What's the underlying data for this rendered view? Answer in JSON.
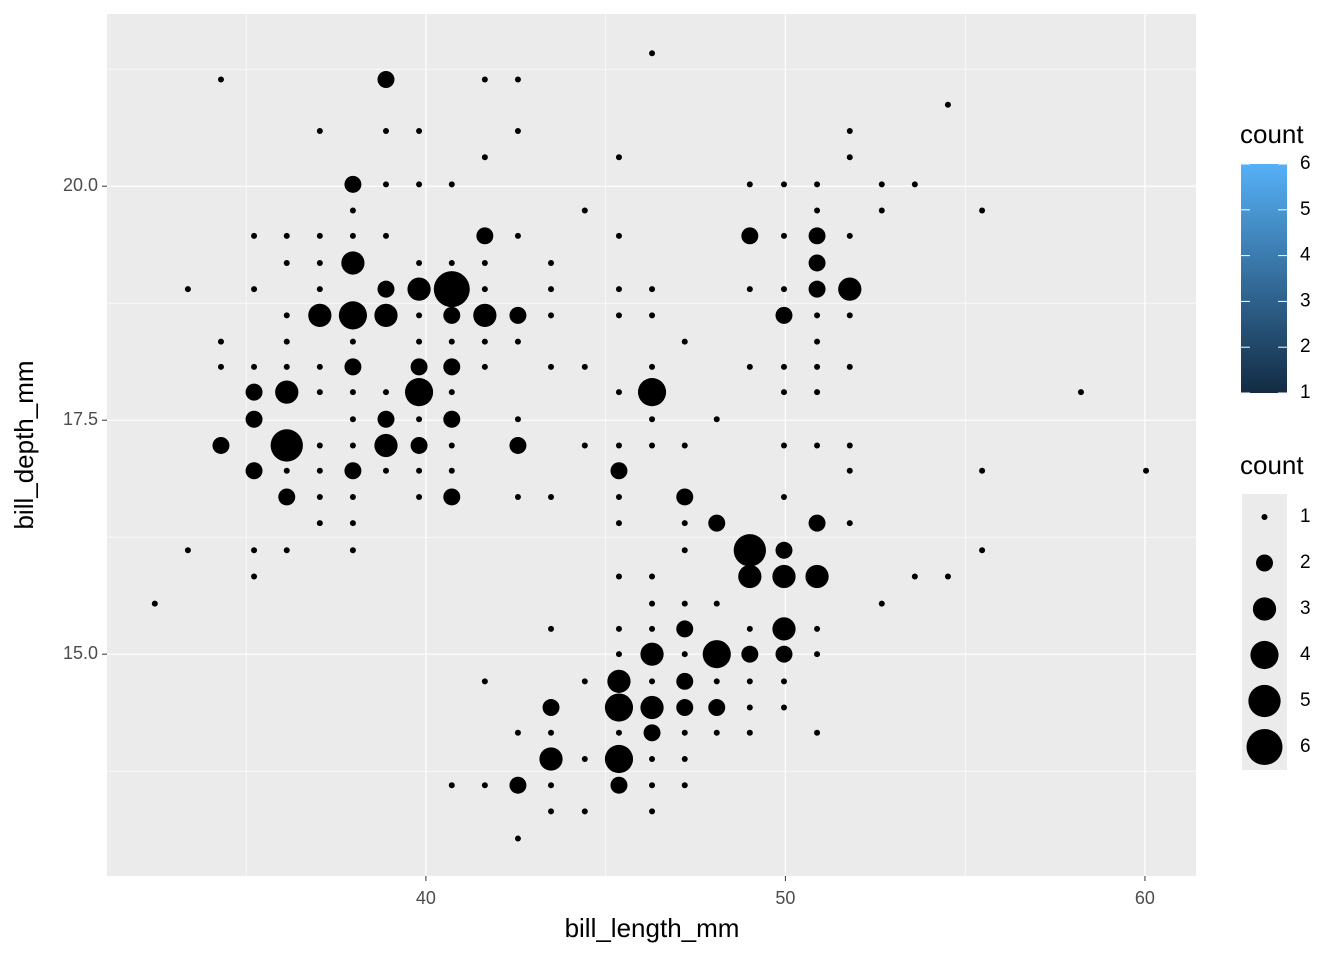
{
  "chart_data": {
    "type": "scatter",
    "xlabel": "bill_length_mm",
    "ylabel": "bill_depth_mm",
    "xlim": [
      31.13,
      61.42
    ],
    "ylim": [
      12.63,
      21.84
    ],
    "xticks": [
      40,
      50,
      60
    ],
    "yticks": [
      {
        "value": 15,
        "label": "15.0"
      },
      {
        "value": 17.5,
        "label": "17.5"
      },
      {
        "value": 20,
        "label": "20.0"
      }
    ],
    "x_minor_ticks": [
      35,
      45,
      55
    ],
    "y_minor_ticks": [
      13.75,
      16.25,
      18.75,
      21.25
    ],
    "grid": true,
    "point_color": "#000000",
    "x": [
      46.29,
      34.3,
      38.89,
      41.64,
      42.56,
      54.52,
      37.05,
      38.89,
      39.81,
      42.56,
      51.79,
      41.64,
      45.37,
      51.79,
      37.97,
      38.89,
      39.81,
      40.72,
      49.01,
      49.96,
      50.88,
      52.68,
      53.6,
      37.97,
      44.42,
      50.88,
      52.68,
      55.47,
      35.22,
      36.13,
      37.05,
      37.97,
      38.89,
      41.64,
      42.56,
      45.37,
      49.01,
      49.96,
      50.88,
      51.79,
      36.13,
      37.05,
      37.97,
      39.81,
      40.72,
      41.64,
      43.48,
      50.88,
      33.38,
      35.22,
      37.05,
      38.89,
      39.81,
      40.72,
      41.64,
      43.48,
      45.37,
      46.29,
      49.01,
      49.96,
      50.88,
      51.79,
      36.13,
      37.05,
      37.97,
      38.89,
      39.81,
      40.72,
      41.64,
      42.56,
      43.48,
      45.37,
      46.29,
      49.96,
      50.88,
      51.79,
      34.3,
      36.13,
      37.97,
      39.81,
      40.72,
      41.64,
      42.56,
      47.2,
      50.88,
      34.3,
      35.22,
      36.13,
      37.05,
      37.97,
      39.81,
      40.72,
      41.64,
      43.48,
      44.42,
      46.29,
      49.01,
      49.96,
      50.88,
      51.79,
      35.22,
      36.13,
      37.05,
      37.97,
      38.89,
      39.81,
      40.72,
      45.37,
      46.29,
      49.96,
      50.88,
      58.22,
      35.22,
      37.97,
      38.89,
      39.81,
      40.72,
      42.56,
      46.29,
      48.09,
      34.3,
      36.13,
      37.05,
      37.97,
      38.89,
      39.81,
      40.72,
      42.56,
      44.42,
      45.37,
      46.29,
      47.2,
      49.96,
      50.88,
      51.79,
      35.22,
      36.13,
      37.05,
      37.97,
      38.89,
      39.81,
      40.72,
      45.37,
      51.79,
      55.47,
      60.03,
      36.13,
      37.05,
      37.97,
      39.81,
      40.72,
      42.56,
      43.48,
      45.37,
      47.2,
      49.96,
      37.05,
      37.97,
      45.37,
      47.2,
      48.09,
      50.88,
      51.79,
      33.38,
      35.22,
      36.13,
      37.97,
      47.2,
      49.01,
      49.96,
      55.47,
      35.22,
      45.37,
      46.29,
      49.01,
      49.96,
      50.88,
      53.6,
      54.52,
      32.46,
      46.29,
      47.2,
      48.09,
      52.68,
      43.48,
      45.37,
      46.29,
      47.2,
      49.01,
      49.96,
      50.88,
      45.37,
      46.29,
      47.2,
      48.09,
      49.01,
      49.96,
      50.88,
      41.64,
      44.42,
      45.37,
      46.29,
      47.2,
      48.09,
      49.01,
      49.96,
      43.48,
      45.37,
      46.29,
      47.2,
      48.09,
      49.01,
      49.96,
      42.56,
      43.48,
      45.37,
      46.29,
      47.2,
      48.09,
      49.01,
      50.88,
      43.48,
      44.42,
      45.37,
      46.29,
      47.2,
      40.72,
      41.64,
      42.56,
      43.48,
      45.37,
      46.29,
      47.2,
      43.48,
      44.42,
      46.29,
      42.56
    ],
    "y": [
      21.42,
      21.14,
      21.14,
      21.14,
      21.14,
      20.87,
      20.59,
      20.59,
      20.59,
      20.59,
      20.59,
      20.31,
      20.31,
      20.31,
      20.02,
      20.02,
      20.02,
      20.02,
      20.02,
      20.02,
      20.02,
      20.02,
      20.02,
      19.74,
      19.74,
      19.74,
      19.74,
      19.74,
      19.47,
      19.47,
      19.47,
      19.47,
      19.47,
      19.47,
      19.47,
      19.47,
      19.47,
      19.47,
      19.47,
      19.47,
      19.18,
      19.18,
      19.18,
      19.18,
      19.18,
      19.18,
      19.18,
      19.18,
      18.9,
      18.9,
      18.9,
      18.9,
      18.9,
      18.9,
      18.9,
      18.9,
      18.9,
      18.9,
      18.9,
      18.9,
      18.9,
      18.9,
      18.62,
      18.62,
      18.62,
      18.62,
      18.62,
      18.62,
      18.62,
      18.62,
      18.62,
      18.62,
      18.62,
      18.62,
      18.62,
      18.62,
      18.34,
      18.34,
      18.34,
      18.34,
      18.34,
      18.34,
      18.34,
      18.34,
      18.34,
      18.07,
      18.07,
      18.07,
      18.07,
      18.07,
      18.07,
      18.07,
      18.07,
      18.07,
      18.07,
      18.07,
      18.07,
      18.07,
      18.07,
      18.07,
      17.8,
      17.8,
      17.8,
      17.8,
      17.8,
      17.8,
      17.8,
      17.8,
      17.8,
      17.8,
      17.8,
      17.8,
      17.51,
      17.51,
      17.51,
      17.51,
      17.51,
      17.51,
      17.51,
      17.51,
      17.23,
      17.23,
      17.23,
      17.23,
      17.23,
      17.23,
      17.23,
      17.23,
      17.23,
      17.23,
      17.23,
      17.23,
      17.23,
      17.23,
      17.23,
      16.96,
      16.96,
      16.96,
      16.96,
      16.96,
      16.96,
      16.96,
      16.96,
      16.96,
      16.96,
      16.96,
      16.68,
      16.68,
      16.68,
      16.68,
      16.68,
      16.68,
      16.68,
      16.68,
      16.68,
      16.68,
      16.4,
      16.4,
      16.4,
      16.4,
      16.4,
      16.4,
      16.4,
      16.11,
      16.11,
      16.11,
      16.11,
      16.11,
      16.11,
      16.11,
      16.11,
      15.83,
      15.83,
      15.83,
      15.83,
      15.83,
      15.83,
      15.83,
      15.83,
      15.54,
      15.54,
      15.54,
      15.54,
      15.54,
      15.27,
      15.27,
      15.27,
      15.27,
      15.27,
      15.27,
      15.27,
      15.0,
      15.0,
      15.0,
      15.0,
      15.0,
      15.0,
      15.0,
      14.71,
      14.71,
      14.71,
      14.71,
      14.71,
      14.71,
      14.71,
      14.71,
      14.43,
      14.43,
      14.43,
      14.43,
      14.43,
      14.43,
      14.43,
      14.16,
      14.16,
      14.16,
      14.16,
      14.16,
      14.16,
      14.16,
      14.16,
      13.88,
      13.88,
      13.88,
      13.88,
      13.88,
      13.6,
      13.6,
      13.6,
      13.6,
      13.6,
      13.6,
      13.6,
      13.32,
      13.32,
      13.32,
      13.03
    ],
    "size": [
      1,
      1,
      2,
      1,
      1,
      1,
      1,
      1,
      1,
      1,
      1,
      1,
      1,
      1,
      2,
      1,
      1,
      1,
      1,
      1,
      1,
      1,
      1,
      1,
      1,
      1,
      1,
      1,
      1,
      1,
      1,
      1,
      1,
      2,
      1,
      1,
      2,
      1,
      2,
      1,
      1,
      1,
      3,
      1,
      1,
      1,
      1,
      2,
      1,
      1,
      1,
      2,
      3,
      6,
      1,
      1,
      1,
      1,
      1,
      1,
      2,
      3,
      1,
      3,
      4,
      3,
      1,
      2,
      3,
      2,
      1,
      1,
      1,
      2,
      1,
      1,
      1,
      1,
      1,
      1,
      1,
      1,
      1,
      1,
      1,
      1,
      1,
      1,
      1,
      2,
      2,
      2,
      1,
      1,
      1,
      1,
      1,
      1,
      1,
      1,
      2,
      3,
      1,
      1,
      1,
      4,
      1,
      1,
      4,
      1,
      1,
      1,
      2,
      1,
      2,
      1,
      2,
      1,
      1,
      1,
      2,
      5,
      1,
      1,
      3,
      2,
      1,
      2,
      1,
      1,
      1,
      1,
      1,
      1,
      1,
      2,
      1,
      1,
      2,
      1,
      1,
      1,
      2,
      1,
      1,
      1,
      2,
      1,
      1,
      1,
      2,
      1,
      1,
      1,
      2,
      1,
      1,
      1,
      1,
      1,
      2,
      2,
      1,
      1,
      1,
      1,
      1,
      1,
      5,
      2,
      1,
      1,
      1,
      1,
      3,
      3,
      3,
      1,
      1,
      1,
      1,
      1,
      1,
      1,
      1,
      1,
      1,
      2,
      1,
      3,
      1,
      1,
      3,
      1,
      4,
      2,
      2,
      1,
      1,
      1,
      3,
      1,
      2,
      1,
      1,
      1,
      2,
      4,
      3,
      2,
      2,
      1,
      1,
      1,
      1,
      1,
      2,
      1,
      1,
      1,
      1,
      3,
      1,
      4,
      1,
      1,
      1,
      1,
      2,
      1,
      2,
      1,
      1,
      1,
      1,
      1,
      1
    ],
    "color_legend": {
      "title": "count",
      "ticks": [
        1,
        2,
        3,
        4,
        5,
        6
      ],
      "low": "#132B43",
      "high": "#56B1F7"
    },
    "size_legend": {
      "title": "count",
      "values": [
        1,
        2,
        3,
        4,
        5,
        6
      ]
    }
  }
}
